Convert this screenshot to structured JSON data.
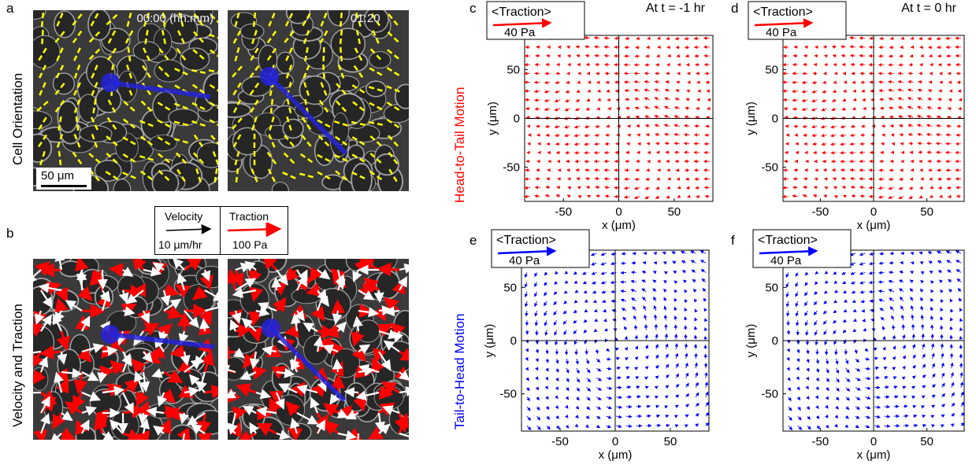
{
  "panel_labels": {
    "a": "a",
    "b": "b",
    "c": "c",
    "d": "d",
    "e": "e",
    "f": "f"
  },
  "row_titles": {
    "cell_orientation": "Cell Orientation",
    "velocity_traction": "Velocity and Traction",
    "head_to_tail": "Head-to-Tail Motion",
    "tail_to_head": "Tail-to-Head Motion"
  },
  "timestamps": {
    "t0": "00:00 (hh:mm)",
    "t1": "01:20"
  },
  "scale_bar_label": "50 μm",
  "legend_b": {
    "velocity_title": "Velocity",
    "velocity_scale": "10 μm/hr",
    "traction_title": "Traction",
    "traction_scale": "100 Pa"
  },
  "traction_legend": {
    "title": "<Traction>",
    "scale": "40 Pa"
  },
  "time_titles": {
    "c": "At t = -1 hr",
    "d": "At t = 0 hr"
  },
  "colors": {
    "head_to_tail": "#ff0000",
    "tail_to_head": "#0000ff",
    "orientation": "#ffff00",
    "velocity": "#ffffff",
    "traction_b": "#ff0000",
    "trajectory": "#2323d6"
  },
  "chart_data": [
    {
      "type": "quiver",
      "panel": "c",
      "title": "At t = -1 hr",
      "xlabel": "x (μm)",
      "ylabel": "y (μm)",
      "xlim": [
        -85,
        85
      ],
      "ylim": [
        -85,
        85
      ],
      "xticks": [
        -50,
        0,
        50
      ],
      "yticks": [
        -50,
        0,
        50
      ],
      "color": "#ff0000"
    },
    {
      "type": "quiver",
      "panel": "d",
      "title": "At t = 0 hr",
      "xlabel": "x (μm)",
      "ylabel": "y (μm)",
      "xlim": [
        -85,
        85
      ],
      "ylim": [
        -85,
        85
      ],
      "xticks": [
        -50,
        0,
        50
      ],
      "yticks": [
        -50,
        0,
        50
      ],
      "color": "#ff0000"
    },
    {
      "type": "quiver",
      "panel": "e",
      "title": "",
      "xlabel": "x (μm)",
      "ylabel": "y (μm)",
      "xlim": [
        -85,
        85
      ],
      "ylim": [
        -85,
        85
      ],
      "xticks": [
        -50,
        0,
        50
      ],
      "yticks": [
        -50,
        0,
        50
      ],
      "color": "#0000ff"
    },
    {
      "type": "quiver",
      "panel": "f",
      "title": "",
      "xlabel": "x (μm)",
      "ylabel": "y (μm)",
      "xlim": [
        -85,
        85
      ],
      "ylim": [
        -85,
        85
      ],
      "xticks": [
        -50,
        0,
        50
      ],
      "yticks": [
        -50,
        0,
        50
      ],
      "color": "#0000ff"
    }
  ]
}
